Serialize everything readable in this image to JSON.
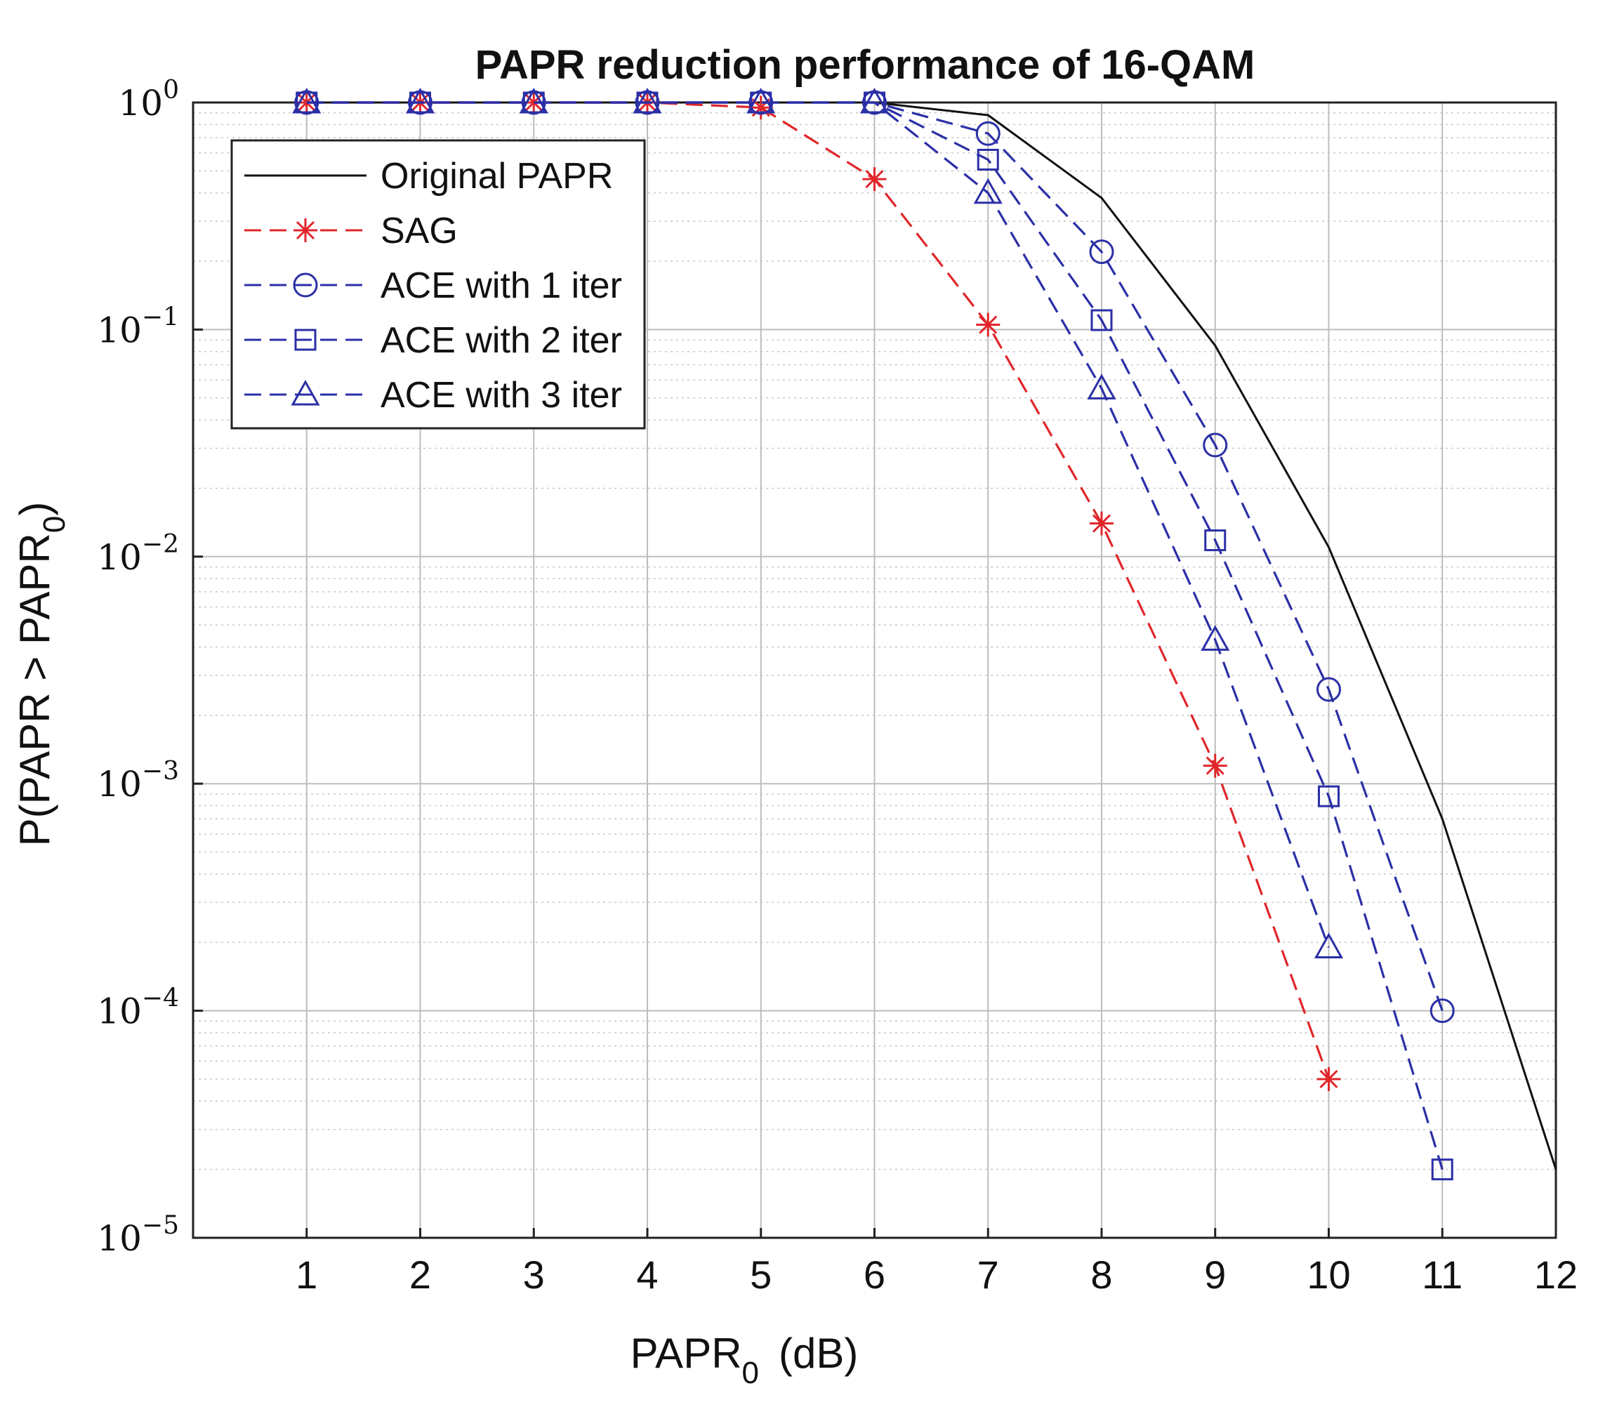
{
  "chart_data": {
    "type": "line",
    "title": "PAPR reduction performance of 16-QAM",
    "xlabel_main": "PAPR",
    "xlabel_sub": "0",
    "xlabel_unit": "(dB)",
    "ylabel": "P(PAPR > PAPR",
    "ylabel_sub": "0",
    "ylabel_close": ")",
    "xlim": [
      0,
      12
    ],
    "ylim": [
      1e-05,
      1
    ],
    "yscale": "log",
    "grid": true,
    "minor_grid": true,
    "legend_position": "top-left",
    "x_ticks": [
      "1",
      "2",
      "3",
      "4",
      "5",
      "6",
      "7",
      "8",
      "9",
      "10",
      "11",
      "12"
    ],
    "y_ticks": [
      {
        "base": "10",
        "exp": "0",
        "value": 1
      },
      {
        "base": "10",
        "exp": "−1",
        "value": 0.1
      },
      {
        "base": "10",
        "exp": "−2",
        "value": 0.01
      },
      {
        "base": "10",
        "exp": "−3",
        "value": 0.001
      },
      {
        "base": "10",
        "exp": "−4",
        "value": 0.0001
      },
      {
        "base": "10",
        "exp": "−5",
        "value": 1e-05
      }
    ],
    "series": [
      {
        "name": "Original PAPR",
        "color": "#111111",
        "dash": "solid",
        "marker": "none",
        "x": [
          1,
          2,
          3,
          4,
          5,
          6,
          7,
          8,
          9,
          10,
          11,
          12
        ],
        "y": [
          1,
          1,
          1,
          1,
          1,
          1,
          0.88,
          0.38,
          0.085,
          0.011,
          0.0007,
          2e-05
        ]
      },
      {
        "name": "SAG",
        "color": "#e0262b",
        "dash": "dashed",
        "marker": "star",
        "x": [
          1,
          2,
          3,
          4,
          5,
          6,
          7,
          8,
          9,
          10
        ],
        "y": [
          1,
          1,
          1,
          1,
          0.95,
          0.46,
          0.105,
          0.014,
          0.0012,
          5e-05
        ]
      },
      {
        "name": "ACE with 1 iter",
        "color": "#2b2fa6",
        "dash": "dashed",
        "marker": "circle",
        "x": [
          1,
          2,
          3,
          4,
          5,
          6,
          7,
          8,
          9,
          10,
          11
        ],
        "y": [
          1,
          1,
          1,
          1,
          1,
          1,
          0.73,
          0.22,
          0.031,
          0.0026,
          0.0001
        ]
      },
      {
        "name": "ACE with 2 iter",
        "color": "#2b2fa6",
        "dash": "dashed",
        "marker": "square",
        "x": [
          1,
          2,
          3,
          4,
          5,
          6,
          7,
          8,
          9,
          10,
          11
        ],
        "y": [
          1,
          1,
          1,
          1,
          1,
          1,
          0.56,
          0.11,
          0.0118,
          0.00088,
          2e-05
        ]
      },
      {
        "name": "ACE with 3 iter",
        "color": "#2b2fa6",
        "dash": "dashed",
        "marker": "triangle",
        "x": [
          1,
          2,
          3,
          4,
          5,
          6,
          7,
          8,
          9,
          10
        ],
        "y": [
          1,
          1,
          1,
          1,
          1,
          1,
          0.4,
          0.055,
          0.0043,
          0.00019
        ]
      }
    ]
  }
}
